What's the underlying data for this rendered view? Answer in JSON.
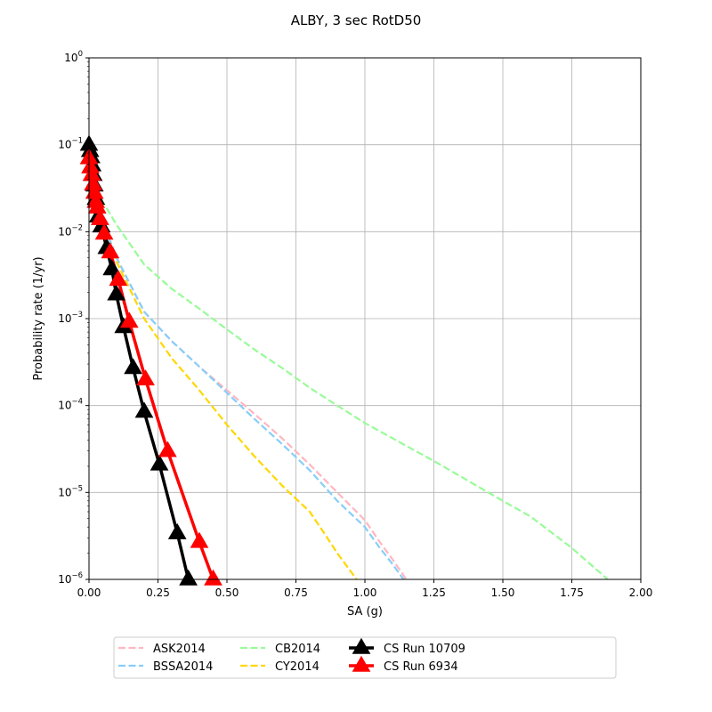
{
  "chart_data": {
    "type": "line",
    "title": "ALBY, 3 sec RotD50",
    "xlabel": "SA (g)",
    "ylabel": "Probability rate (1/yr)",
    "xlim": [
      0,
      2
    ],
    "ylim": [
      1e-06,
      1
    ],
    "yscale": "log",
    "grid": true,
    "legend_position": "below plot",
    "x_ticks": [
      "0.00",
      "0.25",
      "0.50",
      "0.75",
      "1.00",
      "1.25",
      "1.50",
      "1.75",
      "2.00"
    ],
    "y_ticks": [
      {
        "base": "10",
        "exp": "0"
      },
      {
        "base": "10",
        "exp": "−1"
      },
      {
        "base": "10",
        "exp": "−2"
      },
      {
        "base": "10",
        "exp": "−3"
      },
      {
        "base": "10",
        "exp": "−4"
      },
      {
        "base": "10",
        "exp": "−5"
      },
      {
        "base": "10",
        "exp": "−6"
      }
    ],
    "series": [
      {
        "name": "ASK2014",
        "color": "#ffb6c1",
        "style": "dashed",
        "marker": "none",
        "x": [
          0.0,
          0.05,
          0.1,
          0.2,
          0.3,
          0.4,
          0.5,
          0.6,
          0.7,
          0.8,
          0.9,
          1.0,
          1.05,
          1.1,
          1.15
        ],
        "y": [
          0.04,
          0.013,
          0.005,
          0.0012,
          0.00055,
          0.00028,
          0.00015,
          8e-05,
          4.2e-05,
          2.1e-05,
          1e-05,
          4.8e-06,
          2.8e-06,
          1.7e-06,
          1e-06
        ]
      },
      {
        "name": "BSSA2014",
        "color": "#87cefa",
        "style": "dashed",
        "marker": "none",
        "x": [
          0.0,
          0.05,
          0.1,
          0.2,
          0.3,
          0.4,
          0.5,
          0.6,
          0.7,
          0.8,
          0.9,
          1.0,
          1.05,
          1.1,
          1.14
        ],
        "y": [
          0.04,
          0.013,
          0.005,
          0.0012,
          0.00055,
          0.00028,
          0.00014,
          7e-05,
          3.6e-05,
          1.8e-05,
          8e-06,
          4e-06,
          2.4e-06,
          1.5e-06,
          1e-06
        ]
      },
      {
        "name": "CB2014",
        "color": "#98fb98",
        "style": "dashed",
        "marker": "none",
        "x": [
          0.0,
          0.05,
          0.1,
          0.2,
          0.3,
          0.4,
          0.5,
          0.6,
          0.7,
          0.8,
          0.9,
          1.0,
          1.25,
          1.5,
          1.6,
          1.75,
          1.88
        ],
        "y": [
          0.05,
          0.022,
          0.012,
          0.0042,
          0.0022,
          0.0013,
          0.00075,
          0.00044,
          0.00027,
          0.00016,
          0.0001,
          6.3e-05,
          2.3e-05,
          8e-06,
          5.3e-06,
          2.3e-06,
          1e-06
        ]
      },
      {
        "name": "CY2014",
        "color": "#ffd700",
        "style": "dashed",
        "marker": "none",
        "x": [
          0.0,
          0.05,
          0.1,
          0.2,
          0.3,
          0.4,
          0.5,
          0.6,
          0.7,
          0.8,
          0.85,
          0.9,
          0.97
        ],
        "y": [
          0.035,
          0.011,
          0.0045,
          0.001,
          0.00035,
          0.00015,
          6e-05,
          2.6e-05,
          1.2e-05,
          6e-06,
          3.5e-06,
          2e-06,
          1e-06
        ]
      },
      {
        "name": "CS Run 10709",
        "color": "#000000",
        "style": "solid",
        "marker": "triangle",
        "x": [
          0.0,
          0.004,
          0.008,
          0.012,
          0.016,
          0.02,
          0.025,
          0.033,
          0.045,
          0.064,
          0.083,
          0.099,
          0.125,
          0.16,
          0.2,
          0.255,
          0.32,
          0.36
        ],
        "y": [
          0.1,
          0.085,
          0.072,
          0.058,
          0.045,
          0.034,
          0.024,
          0.015,
          0.0115,
          0.0065,
          0.0037,
          0.0019,
          0.0008,
          0.00027,
          8.5e-05,
          2.1e-05,
          3.4e-06,
          1e-06
        ]
      },
      {
        "name": "CS Run 6934",
        "color": "#ff0000",
        "style": "solid",
        "marker": "triangle",
        "x": [
          0.0,
          0.005,
          0.01,
          0.015,
          0.02,
          0.025,
          0.03,
          0.04,
          0.055,
          0.077,
          0.106,
          0.146,
          0.205,
          0.285,
          0.4,
          0.45
        ],
        "y": [
          0.07,
          0.055,
          0.045,
          0.035,
          0.028,
          0.022,
          0.019,
          0.014,
          0.0095,
          0.0058,
          0.0028,
          0.00092,
          0.0002,
          3e-05,
          2.7e-06,
          1e-06
        ]
      }
    ]
  }
}
